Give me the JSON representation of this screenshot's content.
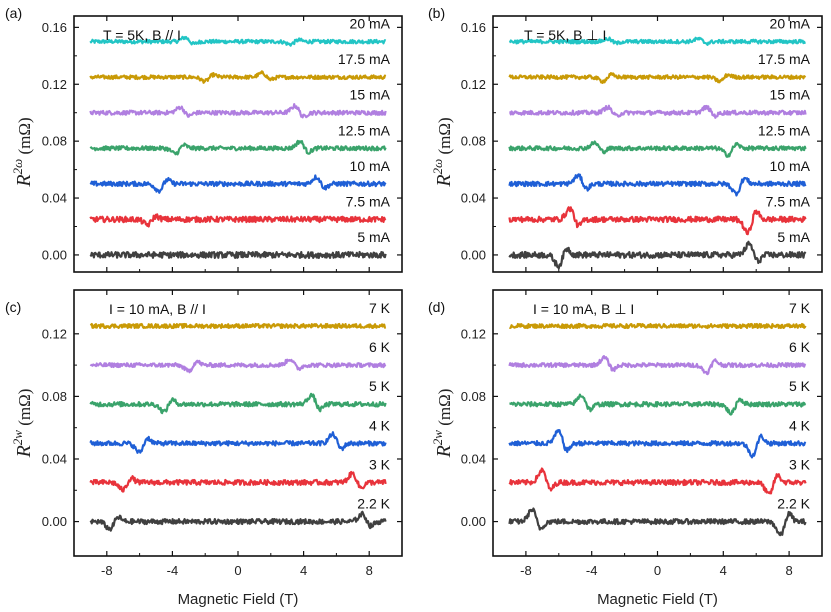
{
  "chart_data": [
    {
      "panel": "(a)",
      "type": "line",
      "title": "T = 5K, B // I",
      "xlabel": "Magnetic Field (T)",
      "ylabel_main": "R",
      "ylabel_sup": "2ω",
      "ylabel_unit": "(mΩ)",
      "xlim": [
        -10,
        10
      ],
      "ylim": [
        -0.012,
        0.168
      ],
      "yticks": [
        0,
        0.04,
        0.08,
        0.12,
        0.16
      ],
      "ytick_labels": [
        "0.00",
        "0.04",
        "0.08",
        "0.12",
        "0.16"
      ],
      "xticks": [
        -8,
        -4,
        0,
        4,
        8
      ],
      "xtick_labels": [],
      "series": [
        {
          "name": "20 mA",
          "color": "#22c5c5",
          "offset": 0.15,
          "noise": 0.0008,
          "features": [
            {
              "x": -3.2,
              "a": 0.003
            },
            {
              "x": 3.2,
              "a": -0.002
            }
          ]
        },
        {
          "name": "17.5 mA",
          "color": "#c99a06",
          "offset": 0.125,
          "noise": 0.0008,
          "features": [
            {
              "x": -2.0,
              "a": -0.003
            },
            {
              "x": 1.5,
              "a": 0.003
            }
          ]
        },
        {
          "name": "15 mA",
          "color": "#b07fe0",
          "offset": 0.1,
          "noise": 0.0009,
          "features": [
            {
              "x": -3.5,
              "a": 0.004
            },
            {
              "x": 3.5,
              "a": 0.005
            }
          ]
        },
        {
          "name": "12.5 mA",
          "color": "#3aa36b",
          "offset": 0.075,
          "noise": 0.0009,
          "features": [
            {
              "x": -3.8,
              "a": -0.004
            },
            {
              "x": 3.8,
              "a": 0.005
            }
          ]
        },
        {
          "name": "10 mA",
          "color": "#1f5fd6",
          "offset": 0.05,
          "noise": 0.001,
          "features": [
            {
              "x": -4.8,
              "a": -0.005
            },
            {
              "x": 4.8,
              "a": 0.005
            }
          ]
        },
        {
          "name": "7.5 mA",
          "color": "#e8333b",
          "offset": 0.025,
          "noise": 0.0012,
          "features": [
            {
              "x": -5.5,
              "a": -0.004
            }
          ]
        },
        {
          "name": "5 mA",
          "color": "#404040",
          "offset": 0.0,
          "noise": 0.0013,
          "features": []
        }
      ]
    },
    {
      "panel": "(b)",
      "type": "line",
      "title": "T = 5K, B ⊥ I",
      "xlabel": "Magnetic Field (T)",
      "ylabel_main": "R",
      "ylabel_sup": "2ω",
      "ylabel_unit": "(mΩ)",
      "xlim": [
        -10,
        10
      ],
      "ylim": [
        -0.012,
        0.168
      ],
      "yticks": [
        0,
        0.04,
        0.08,
        0.12,
        0.16
      ],
      "ytick_labels": [
        "0.00",
        "0.04",
        "0.08",
        "0.12",
        "0.16"
      ],
      "xticks": [
        -8,
        -4,
        0,
        4,
        8
      ],
      "xtick_labels": [],
      "series": [
        {
          "name": "20 mA",
          "color": "#22c5c5",
          "offset": 0.15,
          "noise": 0.0008,
          "features": [
            {
              "x": -3.0,
              "a": 0.002
            },
            {
              "x": 2.5,
              "a": 0.002
            }
          ]
        },
        {
          "name": "17.5 mA",
          "color": "#c99a06",
          "offset": 0.125,
          "noise": 0.0008,
          "features": [
            {
              "x": -3.3,
              "a": -0.003
            },
            {
              "x": 3.8,
              "a": -0.003
            }
          ]
        },
        {
          "name": "15 mA",
          "color": "#b07fe0",
          "offset": 0.1,
          "noise": 0.0009,
          "features": [
            {
              "x": -3.0,
              "a": 0.004
            },
            {
              "x": 3.0,
              "a": 0.004
            }
          ]
        },
        {
          "name": "12.5 mA",
          "color": "#3aa36b",
          "offset": 0.075,
          "noise": 0.0009,
          "features": [
            {
              "x": -3.8,
              "a": 0.004
            },
            {
              "x": 4.3,
              "a": -0.005
            }
          ]
        },
        {
          "name": "10 mA",
          "color": "#1f5fd6",
          "offset": 0.05,
          "noise": 0.001,
          "features": [
            {
              "x": -4.8,
              "a": 0.006
            },
            {
              "x": 4.8,
              "a": -0.007
            }
          ]
        },
        {
          "name": "7.5 mA",
          "color": "#e8333b",
          "offset": 0.025,
          "noise": 0.0012,
          "features": [
            {
              "x": -5.3,
              "a": 0.008
            },
            {
              "x": 5.5,
              "a": -0.01
            }
          ]
        },
        {
          "name": "5 mA",
          "color": "#404040",
          "offset": 0.0,
          "noise": 0.0013,
          "features": [
            {
              "x": -6.0,
              "a": -0.008
            },
            {
              "x": 5.6,
              "a": 0.008
            }
          ]
        }
      ]
    },
    {
      "panel": "(c)",
      "type": "line",
      "title": "I = 10 mA, B // I",
      "xlabel": "Magnetic Field (T)",
      "ylabel_main": "R",
      "ylabel_sup": "2w",
      "ylabel_unit": "(mΩ)",
      "xlim": [
        -10,
        10
      ],
      "ylim": [
        -0.022,
        0.148
      ],
      "yticks": [
        0,
        0.04,
        0.08,
        0.12
      ],
      "ytick_labels": [
        "0.00",
        "0.04",
        "0.08",
        "0.12"
      ],
      "xticks": [
        -8,
        -4,
        0,
        4,
        8
      ],
      "xtick_labels": [
        "-8",
        "-4",
        "0",
        "4",
        "8"
      ],
      "series": [
        {
          "name": "7 K",
          "color": "#c99a06",
          "offset": 0.125,
          "noise": 0.0008,
          "features": []
        },
        {
          "name": "6 K",
          "color": "#b07fe0",
          "offset": 0.1,
          "noise": 0.0008,
          "features": [
            {
              "x": -3.0,
              "a": -0.004
            },
            {
              "x": 3.2,
              "a": 0.004
            }
          ]
        },
        {
          "name": "5 K",
          "color": "#3aa36b",
          "offset": 0.075,
          "noise": 0.0009,
          "features": [
            {
              "x": -4.5,
              "a": -0.005
            },
            {
              "x": 4.5,
              "a": 0.006
            }
          ]
        },
        {
          "name": "4 K",
          "color": "#1f5fd6",
          "offset": 0.05,
          "noise": 0.0009,
          "features": [
            {
              "x": -6.0,
              "a": -0.006
            },
            {
              "x": 5.8,
              "a": 0.006
            }
          ]
        },
        {
          "name": "3 K",
          "color": "#e8333b",
          "offset": 0.025,
          "noise": 0.001,
          "features": [
            {
              "x": -7.0,
              "a": -0.005
            },
            {
              "x": 7.0,
              "a": 0.006
            }
          ]
        },
        {
          "name": "2.2 K",
          "color": "#404040",
          "offset": 0.0,
          "noise": 0.001,
          "features": [
            {
              "x": -7.8,
              "a": -0.005
            },
            {
              "x": 7.6,
              "a": 0.005
            }
          ]
        }
      ]
    },
    {
      "panel": "(d)",
      "type": "line",
      "title": "I = 10 mA, B ⊥ I",
      "xlabel": "Magnetic Field (T)",
      "ylabel_main": "R",
      "ylabel_sup": "2w",
      "ylabel_unit": "(mΩ)",
      "xlim": [
        -10,
        10
      ],
      "ylim": [
        -0.022,
        0.148
      ],
      "yticks": [
        0,
        0.04,
        0.08,
        0.12
      ],
      "ytick_labels": [
        "0.00",
        "0.04",
        "0.08",
        "0.12"
      ],
      "xticks": [
        -8,
        -4,
        0,
        4,
        8
      ],
      "xtick_labels": [
        "-8",
        "-4",
        "0",
        "4",
        "8"
      ],
      "series": [
        {
          "name": "7 K",
          "color": "#c99a06",
          "offset": 0.125,
          "noise": 0.0008,
          "features": []
        },
        {
          "name": "6 K",
          "color": "#b07fe0",
          "offset": 0.1,
          "noise": 0.0008,
          "features": [
            {
              "x": -3.2,
              "a": 0.005
            },
            {
              "x": 3.0,
              "a": -0.005
            }
          ]
        },
        {
          "name": "5 K",
          "color": "#3aa36b",
          "offset": 0.075,
          "noise": 0.0009,
          "features": [
            {
              "x": -4.6,
              "a": 0.006
            },
            {
              "x": 4.5,
              "a": -0.006
            }
          ]
        },
        {
          "name": "4 K",
          "color": "#1f5fd6",
          "offset": 0.05,
          "noise": 0.0009,
          "features": [
            {
              "x": -6.0,
              "a": 0.008
            },
            {
              "x": 5.8,
              "a": -0.008
            }
          ]
        },
        {
          "name": "3 K",
          "color": "#e8333b",
          "offset": 0.025,
          "noise": 0.001,
          "features": [
            {
              "x": -7.0,
              "a": 0.008
            },
            {
              "x": 6.8,
              "a": -0.008
            }
          ]
        },
        {
          "name": "2.2 K",
          "color": "#404040",
          "offset": 0.0,
          "noise": 0.001,
          "features": [
            {
              "x": -7.6,
              "a": 0.008
            },
            {
              "x": 7.5,
              "a": -0.009
            }
          ]
        }
      ]
    }
  ]
}
